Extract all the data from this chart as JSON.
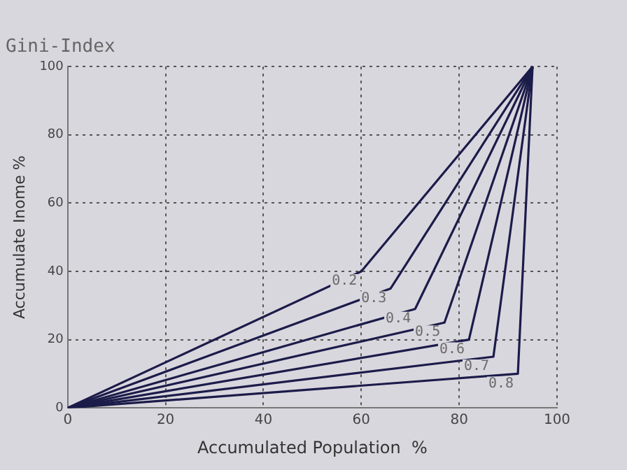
{
  "chart_data": {
    "type": "line",
    "title": "Gini-Index",
    "xlabel": "Accumulated Population  %",
    "ylabel": "Accumulate Inome %",
    "xlim": [
      0,
      100
    ],
    "xticks": [
      0,
      20,
      40,
      60,
      80,
      100
    ],
    "ylim": [
      0,
      100
    ],
    "yticks": [
      0,
      20,
      40,
      60,
      80,
      100
    ],
    "grid": true,
    "legend": false,
    "marker": "none",
    "line_style": "solid",
    "series": [
      {
        "name": "0.2",
        "color": "#1c1c4a",
        "x": [
          0,
          60,
          95
        ],
        "values": [
          0,
          40,
          100
        ]
      },
      {
        "name": "0.3",
        "color": "#1c1c4a",
        "x": [
          0,
          66,
          95
        ],
        "values": [
          0,
          35,
          100
        ]
      },
      {
        "name": "0.4",
        "color": "#1c1c4a",
        "x": [
          0,
          71,
          95
        ],
        "values": [
          0,
          29,
          100
        ]
      },
      {
        "name": "0.5",
        "color": "#1c1c4a",
        "x": [
          0,
          77,
          95
        ],
        "values": [
          0,
          25,
          100
        ]
      },
      {
        "name": "0.6",
        "color": "#1c1c4a",
        "x": [
          0,
          82,
          95
        ],
        "values": [
          0,
          20,
          100
        ]
      },
      {
        "name": "0.7",
        "color": "#1c1c4a",
        "x": [
          0,
          87,
          95
        ],
        "values": [
          0,
          15,
          100
        ]
      },
      {
        "name": "0.8",
        "color": "#1c1c4a",
        "x": [
          0,
          92,
          95
        ],
        "values": [
          0,
          10,
          100
        ]
      }
    ]
  }
}
